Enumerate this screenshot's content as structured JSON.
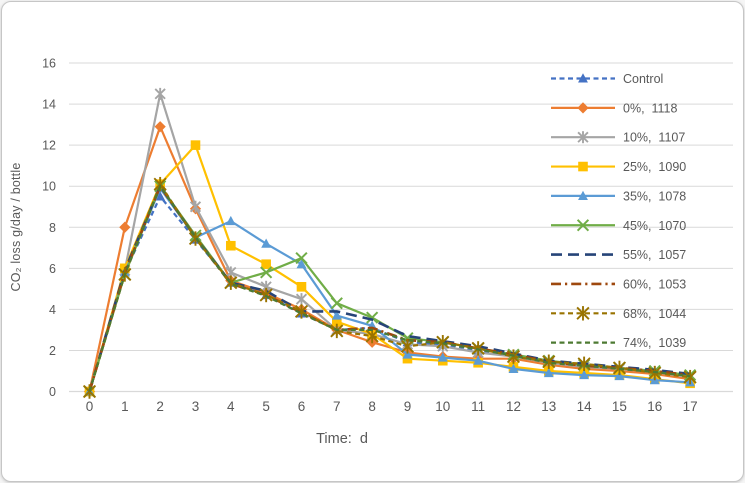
{
  "window": {
    "background": "#ffffff",
    "border_color": "#c6c6c6",
    "axis_text_color": "#595959",
    "gridline_color": "#d9d9d9"
  },
  "chart_data": {
    "type": "line",
    "title": "",
    "xlabel": "Time:  d",
    "ylabel": "CO₂ loss g/day / bottle",
    "x": [
      0,
      1,
      2,
      3,
      4,
      5,
      6,
      7,
      8,
      9,
      10,
      11,
      12,
      13,
      14,
      15,
      16,
      17
    ],
    "ylim": [
      0,
      16
    ],
    "ytick_step": 2,
    "yticks": [
      0,
      2,
      4,
      6,
      8,
      10,
      12,
      14,
      16
    ],
    "grid": "horizontal",
    "legend_position": "right-inside",
    "series": [
      {
        "label": "Control",
        "color": "#4472C4",
        "marker": "triangle",
        "marker_size": 5.2,
        "line_style": "dash",
        "values": [
          0,
          5.8,
          9.5,
          7.4,
          5.3,
          4.7,
          3.8,
          3.0,
          3.1,
          2.4,
          2.3,
          2.0,
          1.7,
          1.4,
          1.25,
          1.1,
          0.95,
          0.75
        ]
      },
      {
        "label": "0%,  1118",
        "color": "#ED7D31",
        "marker": "diamond",
        "marker_size": 5.6,
        "line_style": "solid",
        "values": [
          0,
          8.0,
          12.9,
          8.9,
          5.4,
          4.8,
          4.0,
          3.0,
          2.4,
          1.9,
          1.7,
          1.6,
          1.6,
          1.3,
          1.1,
          1.0,
          0.85,
          0.6
        ]
      },
      {
        "label": "10%,  1107",
        "color": "#A5A5A5",
        "marker": "asterisk",
        "marker_size": 6.0,
        "line_style": "solid",
        "values": [
          0,
          5.9,
          14.5,
          9.0,
          5.8,
          5.1,
          4.5,
          3.0,
          2.8,
          2.3,
          2.2,
          1.9,
          1.7,
          1.4,
          1.2,
          1.1,
          0.95,
          0.7
        ]
      },
      {
        "label": "25%,  1090",
        "color": "#FFC000",
        "marker": "square",
        "marker_size": 4.8,
        "line_style": "solid",
        "values": [
          0,
          6.0,
          10.1,
          12.0,
          7.1,
          6.2,
          5.1,
          3.4,
          2.8,
          1.6,
          1.5,
          1.4,
          1.2,
          1.0,
          0.9,
          0.8,
          0.6,
          0.4
        ]
      },
      {
        "label": "35%,  1078",
        "color": "#5B9BD5",
        "marker": "triangle",
        "marker_size": 5.2,
        "line_style": "solid",
        "values": [
          0,
          5.8,
          9.9,
          7.5,
          8.3,
          7.2,
          6.2,
          3.7,
          3.2,
          1.8,
          1.65,
          1.5,
          1.1,
          0.9,
          0.8,
          0.75,
          0.55,
          0.45
        ]
      },
      {
        "label": "45%,  1070",
        "color": "#70AD47",
        "marker": "x",
        "marker_size": 5.4,
        "line_style": "solid",
        "values": [
          0,
          5.7,
          10.0,
          7.6,
          5.3,
          5.8,
          6.5,
          4.3,
          3.6,
          2.6,
          2.4,
          2.1,
          1.8,
          1.5,
          1.3,
          1.15,
          1.0,
          0.8
        ]
      },
      {
        "label": "55%,  1057",
        "color": "#264478",
        "marker": "none",
        "marker_size": 0,
        "line_style": "long-dash",
        "values": [
          0,
          5.9,
          10.0,
          7.5,
          5.3,
          4.9,
          3.9,
          3.9,
          3.5,
          2.7,
          2.45,
          2.2,
          1.85,
          1.5,
          1.35,
          1.2,
          1.05,
          0.85
        ]
      },
      {
        "label": "60%,  1053",
        "color": "#9E480E",
        "marker": "none",
        "marker_size": 0,
        "line_style": "dash-dot",
        "values": [
          0,
          5.8,
          10.0,
          7.5,
          5.25,
          4.7,
          3.85,
          3.0,
          3.1,
          2.5,
          2.4,
          2.1,
          1.8,
          1.45,
          1.25,
          1.15,
          1.0,
          0.8
        ]
      },
      {
        "label": "68%,  1044",
        "color": "#997300",
        "marker": "asterisk",
        "marker_size": 7.2,
        "line_style": "dash",
        "values": [
          0,
          5.7,
          10.1,
          7.45,
          5.3,
          4.7,
          3.9,
          2.95,
          2.7,
          2.2,
          2.4,
          2.1,
          1.7,
          1.45,
          1.35,
          1.15,
          0.9,
          0.7
        ]
      },
      {
        "label": "74%,  1039",
        "color": "#4D7A32",
        "marker": "none",
        "marker_size": 0,
        "line_style": "dash",
        "values": [
          0,
          5.7,
          10.0,
          7.5,
          5.25,
          4.65,
          3.8,
          3.0,
          3.0,
          2.5,
          2.35,
          2.05,
          1.75,
          1.4,
          1.25,
          1.1,
          0.95,
          0.75
        ]
      }
    ]
  }
}
